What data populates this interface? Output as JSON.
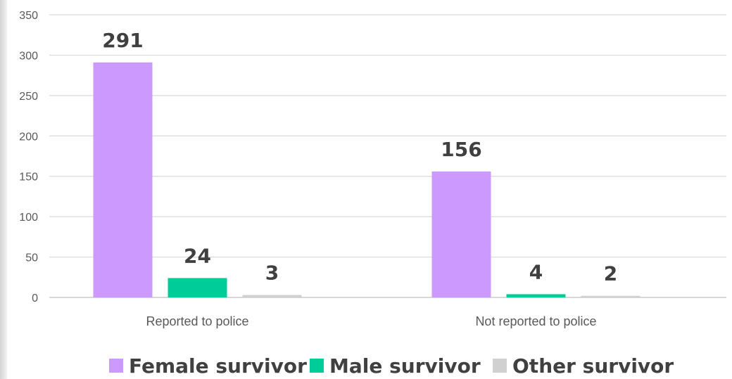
{
  "chart_data": {
    "type": "bar",
    "categories": [
      "Reported to police",
      "Not reported to police"
    ],
    "series": [
      {
        "name": "Female survivor",
        "values": [
          291,
          156
        ],
        "color": "#cc99ff"
      },
      {
        "name": "Male survivor",
        "values": [
          24,
          4
        ],
        "color": "#00cc99"
      },
      {
        "name": "Other survivor",
        "values": [
          3,
          2
        ],
        "color": "#d0d0d0"
      }
    ],
    "y_ticks": [
      "0",
      "50",
      "100",
      "150",
      "200",
      "250",
      "300",
      "350"
    ],
    "ylim": [
      0,
      350
    ],
    "grid": true,
    "legend_position": "bottom",
    "title": "",
    "xlabel": "",
    "ylabel": ""
  }
}
